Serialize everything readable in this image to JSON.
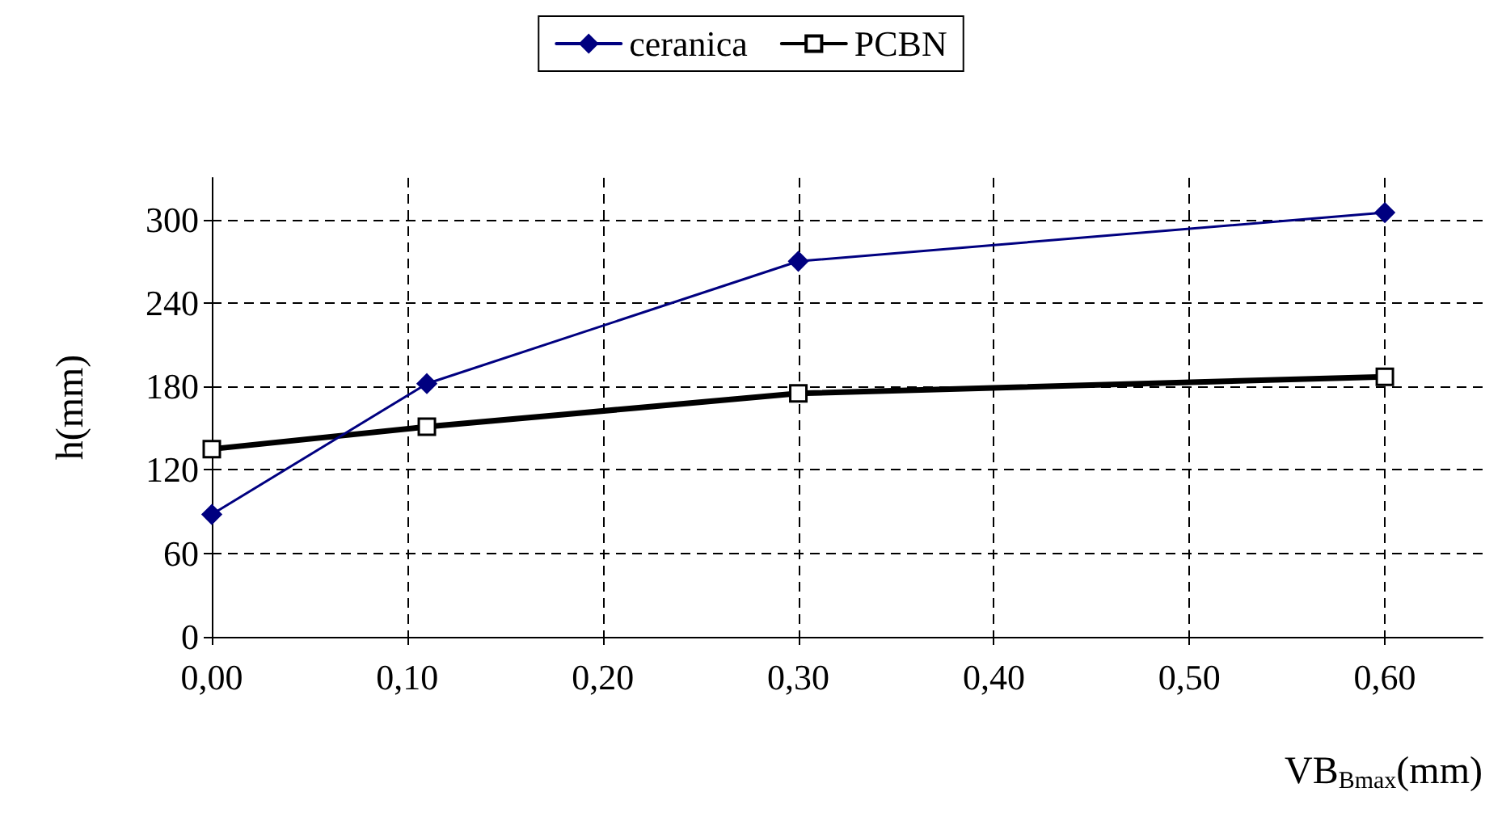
{
  "chart_data": {
    "type": "line",
    "xlabel": "VB$_{Bmax}$(mm)",
    "ylabel": "h(mm)",
    "x": [
      0,
      0.11,
      0.3,
      0.6
    ],
    "series": [
      {
        "name": "ceranica",
        "color": "#000080",
        "marker": "diamond",
        "values": [
          88,
          182,
          270,
          305
        ]
      },
      {
        "name": "PCBN",
        "color": "#000000",
        "marker": "square",
        "values": [
          135,
          151,
          175,
          187
        ]
      }
    ],
    "xlim": [
      0,
      0.65
    ],
    "xticks": [
      {
        "value": 0,
        "label": "0,00"
      },
      {
        "value": 0.1,
        "label": "0,10"
      },
      {
        "value": 0.2,
        "label": "0,20"
      },
      {
        "value": 0.3,
        "label": "0,30"
      },
      {
        "value": 0.4,
        "label": "0,40"
      },
      {
        "value": 0.5,
        "label": "0,50"
      },
      {
        "value": 0.6,
        "label": "0,60"
      }
    ],
    "ylim": [
      0,
      330
    ],
    "yticks": [
      0,
      60,
      120,
      180,
      240,
      300
    ],
    "grid": true,
    "legend": "top",
    "line_style": "solid"
  }
}
